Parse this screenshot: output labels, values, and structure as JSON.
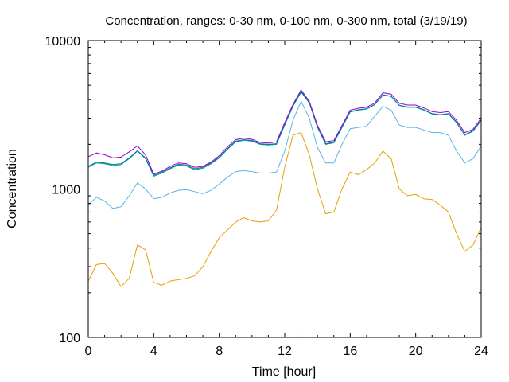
{
  "chart_data": {
    "type": "line",
    "title": "Concentration, ranges: 0-30 nm, 0-100 nm, 0-300 nm, total (3/19/19)",
    "xlabel": "Time [hour]",
    "ylabel": "Concentration",
    "xlim": [
      0,
      24
    ],
    "ylim": [
      100,
      10000
    ],
    "yscale": "log",
    "xticks": [
      0,
      4,
      8,
      12,
      16,
      20,
      24
    ],
    "yticks": [
      100,
      1000,
      10000
    ],
    "xtick_labels": [
      "0",
      "4",
      "8",
      "12",
      "16",
      "20",
      "24"
    ],
    "ytick_labels": [
      "100",
      "1000",
      "10000"
    ],
    "grid": false,
    "x": [
      0,
      0.5,
      1,
      1.5,
      2,
      2.5,
      3,
      3.5,
      4,
      4.5,
      5,
      5.5,
      6,
      6.5,
      7,
      7.5,
      8,
      8.5,
      9,
      9.5,
      10,
      10.5,
      11,
      11.5,
      12,
      12.5,
      13,
      13.5,
      14,
      14.5,
      15,
      15.5,
      16,
      16.5,
      17,
      17.5,
      18,
      18.5,
      19,
      19.5,
      20,
      20.5,
      21,
      21.5,
      22,
      22.5,
      23,
      23.5,
      24
    ],
    "series": [
      {
        "color": "#e69f00",
        "values": [
          240,
          310,
          315,
          270,
          220,
          250,
          420,
          390,
          235,
          225,
          240,
          245,
          250,
          260,
          300,
          380,
          470,
          530,
          600,
          640,
          610,
          600,
          610,
          720,
          1400,
          2300,
          2400,
          1700,
          1000,
          680,
          700,
          1000,
          1300,
          1250,
          1350,
          1500,
          1800,
          1600,
          1000,
          900,
          920,
          860,
          850,
          780,
          700,
          500,
          380,
          420,
          550
        ]
      },
      {
        "color": "#56b4e9",
        "values": [
          780,
          880,
          830,
          740,
          760,
          900,
          1100,
          1000,
          860,
          880,
          940,
          980,
          990,
          960,
          930,
          980,
          1080,
          1200,
          1310,
          1330,
          1310,
          1280,
          1280,
          1300,
          1800,
          2900,
          3900,
          3000,
          1900,
          1500,
          1500,
          2000,
          2550,
          2600,
          2650,
          3100,
          3600,
          3400,
          2700,
          2600,
          2600,
          2500,
          2400,
          2400,
          2300,
          1800,
          1500,
          1600,
          1950
        ]
      },
      {
        "color": "#009e73",
        "values": [
          1400,
          1500,
          1480,
          1440,
          1460,
          1600,
          1800,
          1600,
          1220,
          1280,
          1370,
          1450,
          1430,
          1350,
          1380,
          1480,
          1620,
          1850,
          2080,
          2130,
          2100,
          2000,
          1980,
          2000,
          2700,
          3600,
          4500,
          3800,
          2600,
          2000,
          2050,
          2600,
          3300,
          3400,
          3450,
          3700,
          4300,
          4200,
          3650,
          3550,
          3550,
          3400,
          3200,
          3150,
          3200,
          2800,
          2300,
          2450,
          2900
        ]
      },
      {
        "color": "#0072b2",
        "values": [
          1420,
          1520,
          1500,
          1460,
          1480,
          1620,
          1810,
          1620,
          1240,
          1300,
          1390,
          1470,
          1450,
          1370,
          1400,
          1500,
          1640,
          1870,
          2100,
          2150,
          2120,
          2020,
          2000,
          2020,
          2720,
          3620,
          4550,
          3820,
          2620,
          2020,
          2070,
          2620,
          3320,
          3420,
          3470,
          3720,
          4320,
          4220,
          3670,
          3570,
          3570,
          3420,
          3220,
          3170,
          3220,
          2820,
          2320,
          2470,
          2920
        ]
      },
      {
        "color": "#9400d3",
        "values": [
          1650,
          1750,
          1700,
          1620,
          1640,
          1780,
          1950,
          1700,
          1260,
          1320,
          1420,
          1500,
          1480,
          1400,
          1420,
          1520,
          1680,
          1920,
          2150,
          2200,
          2160,
          2060,
          2040,
          2080,
          2800,
          3700,
          4650,
          3900,
          2680,
          2080,
          2120,
          2680,
          3400,
          3500,
          3550,
          3800,
          4450,
          4350,
          3780,
          3680,
          3680,
          3520,
          3320,
          3270,
          3320,
          2900,
          2400,
          2520,
          3000
        ]
      }
    ]
  }
}
